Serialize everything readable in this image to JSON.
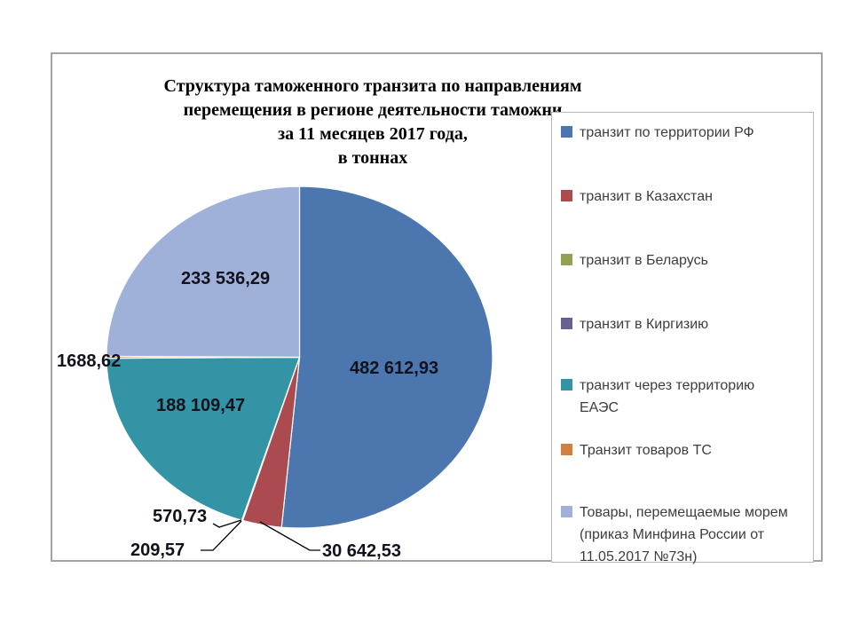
{
  "page": {
    "title_lines": [
      "Структура таможенного транзита по направлениям",
      "перемещения в регионе деятельности таможни",
      "за 11 месяцев 2017 года,",
      "в тоннах"
    ]
  },
  "chart_data": {
    "type": "pie",
    "title": "Структура таможенного транзита по направлениям перемещения в регионе деятельности таможни за 11 месяцев 2017 года, в тоннах",
    "unit": "тонны",
    "legend_position": "right",
    "total": 937370.14,
    "series": [
      {
        "label": "транзит по территории РФ",
        "value": 482612.93,
        "display": "482 612,93",
        "color": "#4b77ae"
      },
      {
        "label": "транзит в Казахстан",
        "value": 30642.53,
        "display": "30 642,53",
        "color": "#ab4a4f"
      },
      {
        "label": "транзит в Беларусь",
        "value": 570.73,
        "display": "570,73",
        "color": "#90a355"
      },
      {
        "label": "транзит в Киргизию",
        "value": 209.57,
        "display": "209,57",
        "color": "#6b5f92"
      },
      {
        "label": "транзит через территорию ЕАЭС",
        "value": 188109.47,
        "display": "188 109,47",
        "color": "#3294a4"
      },
      {
        "label": "Транзит товаров ТС",
        "value": 1688.62,
        "display": "1688,62",
        "color": "#d08040"
      },
      {
        "label": "Товары, перемещаемые морем (приказ Минфина России от 11.05.2017 №73н)",
        "value": 233536.29,
        "display": "233 536,29",
        "color": "#9fb1d9"
      }
    ]
  }
}
